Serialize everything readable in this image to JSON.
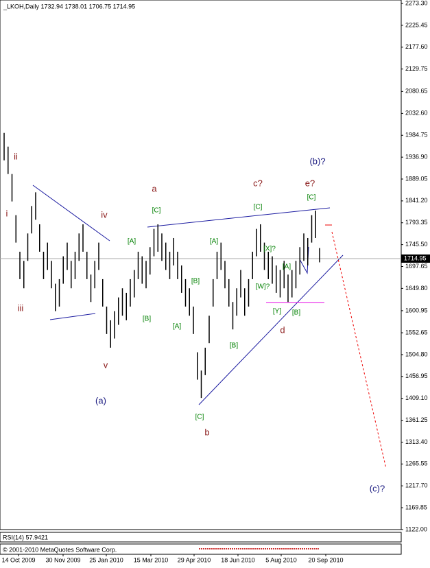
{
  "chart_data": {
    "type": "ohlc",
    "title": "_LKOH,Daily  1732.94 1738.01 1706.75 1714.95",
    "ylim": [
      1122.0,
      2273.3
    ],
    "yticks": [
      {
        "value": 2273.3,
        "label": "2273.30"
      },
      {
        "value": 2225.45,
        "label": "2225.45"
      },
      {
        "value": 2177.6,
        "label": "2177.60"
      },
      {
        "value": 2129.75,
        "label": "2129.75"
      },
      {
        "value": 2080.65,
        "label": "2080.65"
      },
      {
        "value": 2032.6,
        "label": "2032.60"
      },
      {
        "value": 1984.75,
        "label": "1984.75"
      },
      {
        "value": 1936.9,
        "label": "1936.90"
      },
      {
        "value": 1889.05,
        "label": "1889.05"
      },
      {
        "value": 1841.2,
        "label": "1841.20"
      },
      {
        "value": 1793.35,
        "label": "1793.35"
      },
      {
        "value": 1745.5,
        "label": "1745.50"
      },
      {
        "value": 1697.65,
        "label": "1697.65"
      },
      {
        "value": 1649.8,
        "label": "1649.80"
      },
      {
        "value": 1600.95,
        "label": "1600.95"
      },
      {
        "value": 1552.65,
        "label": "1552.65"
      },
      {
        "value": 1504.8,
        "label": "1504.80"
      },
      {
        "value": 1456.95,
        "label": "1456.95"
      },
      {
        "value": 1409.1,
        "label": "1409.10"
      },
      {
        "value": 1361.25,
        "label": "1361.25"
      },
      {
        "value": 1313.4,
        "label": "1313.40"
      },
      {
        "value": 1265.55,
        "label": "1265.55"
      },
      {
        "value": 1217.7,
        "label": "1217.70"
      },
      {
        "value": 1169.85,
        "label": "1169.85"
      },
      {
        "value": 1122.0,
        "label": "1122.00"
      }
    ],
    "current_price": {
      "value": 1714.95,
      "label": "1714.95"
    },
    "x_labels": [
      "14 Oct 2009",
      "30 Nov 2009",
      "25 Jan 2010",
      "15 Mar 2010",
      "29 Apr 2010",
      "18 Jun 2010",
      "5 Aug 2010",
      "20 Sep 2010"
    ],
    "color": "#000000",
    "high": [
      1990,
      1960,
      1900,
      1810,
      1730,
      1710,
      1770,
      1830,
      1860,
      1790,
      1730,
      1750,
      1710,
      1660,
      1670,
      1720,
      1750,
      1710,
      1730,
      1770,
      1790,
      1730,
      1680,
      1710,
      1750,
      1670,
      1610,
      1580,
      1600,
      1630,
      1650,
      1640,
      1670,
      1690,
      1730,
      1720,
      1710,
      1740,
      1780,
      1790,
      1770,
      1750,
      1730,
      1760,
      1730,
      1700,
      1670,
      1650,
      1610,
      1510,
      1470,
      1520,
      1590,
      1670,
      1730,
      1750,
      1710,
      1670,
      1620,
      1650,
      1690,
      1650,
      1670,
      1730,
      1780,
      1790,
      1750,
      1730,
      1720,
      1700,
      1690,
      1710,
      1680,
      1690,
      1710,
      1740,
      1770,
      1760,
      1810,
      1820,
      1738.01
    ],
    "low": [
      1930,
      1900,
      1840,
      1750,
      1670,
      1650,
      1710,
      1770,
      1800,
      1730,
      1670,
      1690,
      1650,
      1600,
      1610,
      1660,
      1690,
      1650,
      1670,
      1710,
      1730,
      1670,
      1620,
      1650,
      1690,
      1610,
      1550,
      1520,
      1540,
      1570,
      1590,
      1580,
      1610,
      1630,
      1670,
      1660,
      1650,
      1680,
      1720,
      1730,
      1710,
      1690,
      1670,
      1700,
      1670,
      1640,
      1610,
      1590,
      1550,
      1450,
      1410,
      1460,
      1530,
      1610,
      1670,
      1690,
      1650,
      1610,
      1560,
      1590,
      1630,
      1590,
      1610,
      1670,
      1720,
      1730,
      1690,
      1670,
      1660,
      1640,
      1630,
      1650,
      1620,
      1630,
      1650,
      1680,
      1710,
      1700,
      1750,
      1760,
      1706.75
    ],
    "annotations": [
      {
        "color": "#8b1a1a",
        "labels": [
          "ii",
          "i",
          "iii",
          "iv",
          "v",
          "a",
          "b",
          "c?",
          "d",
          "e?"
        ]
      },
      {
        "color": "#008000",
        "labels": [
          "[C]",
          "[A]",
          "[B]",
          "[A]",
          "[B]",
          "[C]",
          "[A]",
          "[B]",
          "[C]",
          "[X]?",
          "[W]?",
          "[A]",
          "[Y]",
          "[B]",
          "[C]"
        ]
      },
      {
        "color": "#1a1a80",
        "labels": [
          "(a)",
          "(b)?",
          "(c)?"
        ]
      }
    ],
    "footer": [
      "RSI(14) 57.9421",
      "© 2001-2010 MetaQuotes Software Corp."
    ]
  }
}
